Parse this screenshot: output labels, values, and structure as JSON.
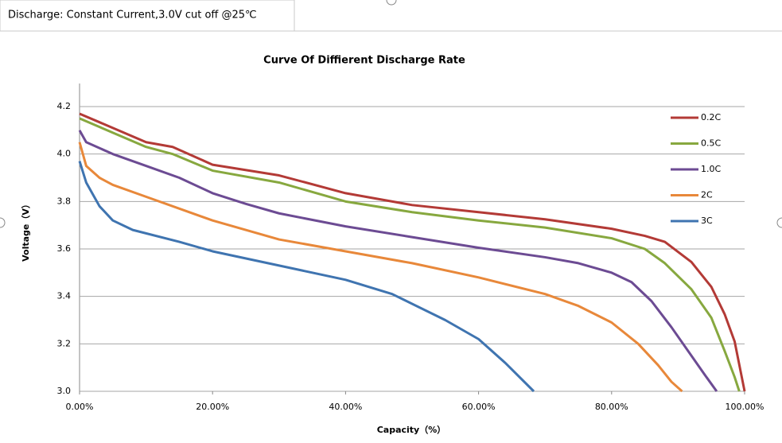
{
  "tab": {
    "label": "Discharge: Constant Current,3.0V cut off @25℃"
  },
  "chart_data": {
    "type": "line",
    "title": "Curve Of Diffierent Discharge Rate",
    "x_label": "Capacity（%）",
    "y_label": "Voltage（V）",
    "xlim": [
      0,
      100
    ],
    "xticks": [
      {
        "value": 0,
        "label": "0.00%"
      },
      {
        "value": 20,
        "label": "20.00%"
      },
      {
        "value": 40,
        "label": "40.00%"
      },
      {
        "value": 60,
        "label": "60.00%"
      },
      {
        "value": 80,
        "label": "80.00%"
      },
      {
        "value": 100,
        "label": "100.00%"
      }
    ],
    "ylim": [
      3.0,
      4.2
    ],
    "yticks": [
      {
        "value": 3.0,
        "label": "3.0"
      },
      3.2,
      3.4,
      3.6,
      3.8,
      {
        "value": 4.0,
        "label": "4.0"
      },
      4.2
    ],
    "grid": true,
    "legend": "upper right",
    "series": [
      {
        "name": "0.2C",
        "color": "#b33a36",
        "x": [
          0,
          10,
          14,
          20,
          30,
          40,
          50,
          60,
          70,
          80,
          85,
          88,
          92,
          95,
          97,
          98.5,
          99.5,
          100
        ],
        "values": [
          4.17,
          4.05,
          4.03,
          3.955,
          3.91,
          3.835,
          3.785,
          3.755,
          3.725,
          3.685,
          3.655,
          3.63,
          3.545,
          3.44,
          3.325,
          3.21,
          3.07,
          3.0
        ]
      },
      {
        "name": "0.5C",
        "color": "#87a83f",
        "x": [
          0,
          10,
          14,
          20,
          30,
          40,
          50,
          60,
          70,
          80,
          85,
          88,
          92,
          95,
          97,
          98.5,
          99.2
        ],
        "values": [
          4.15,
          4.03,
          4.0,
          3.93,
          3.88,
          3.8,
          3.755,
          3.72,
          3.69,
          3.645,
          3.6,
          3.54,
          3.43,
          3.31,
          3.17,
          3.06,
          3.0
        ]
      },
      {
        "name": "1.0C",
        "color": "#6c4b93",
        "x": [
          0,
          1,
          5,
          10,
          15,
          20,
          25,
          30,
          40,
          50,
          60,
          70,
          75,
          80,
          83,
          86,
          89,
          92,
          94,
          95.8
        ],
        "values": [
          4.1,
          4.05,
          4.0,
          3.95,
          3.9,
          3.835,
          3.79,
          3.75,
          3.695,
          3.65,
          3.605,
          3.565,
          3.54,
          3.5,
          3.46,
          3.38,
          3.27,
          3.15,
          3.07,
          3.0
        ]
      },
      {
        "name": "2C",
        "color": "#e8883a",
        "x": [
          0,
          1,
          3,
          5,
          10,
          20,
          30,
          40,
          50,
          60,
          70,
          75,
          80,
          84,
          87,
          89,
          90.6
        ],
        "values": [
          4.05,
          3.95,
          3.9,
          3.87,
          3.82,
          3.72,
          3.64,
          3.59,
          3.54,
          3.48,
          3.41,
          3.36,
          3.29,
          3.2,
          3.11,
          3.04,
          3.0
        ]
      },
      {
        "name": "3C",
        "color": "#3f74b0",
        "x": [
          0,
          1,
          3,
          5,
          8,
          15,
          20,
          30,
          40,
          47,
          55,
          60,
          64,
          68.3
        ],
        "values": [
          3.97,
          3.88,
          3.78,
          3.72,
          3.68,
          3.63,
          3.59,
          3.53,
          3.47,
          3.41,
          3.3,
          3.22,
          3.12,
          3.0
        ]
      }
    ]
  }
}
